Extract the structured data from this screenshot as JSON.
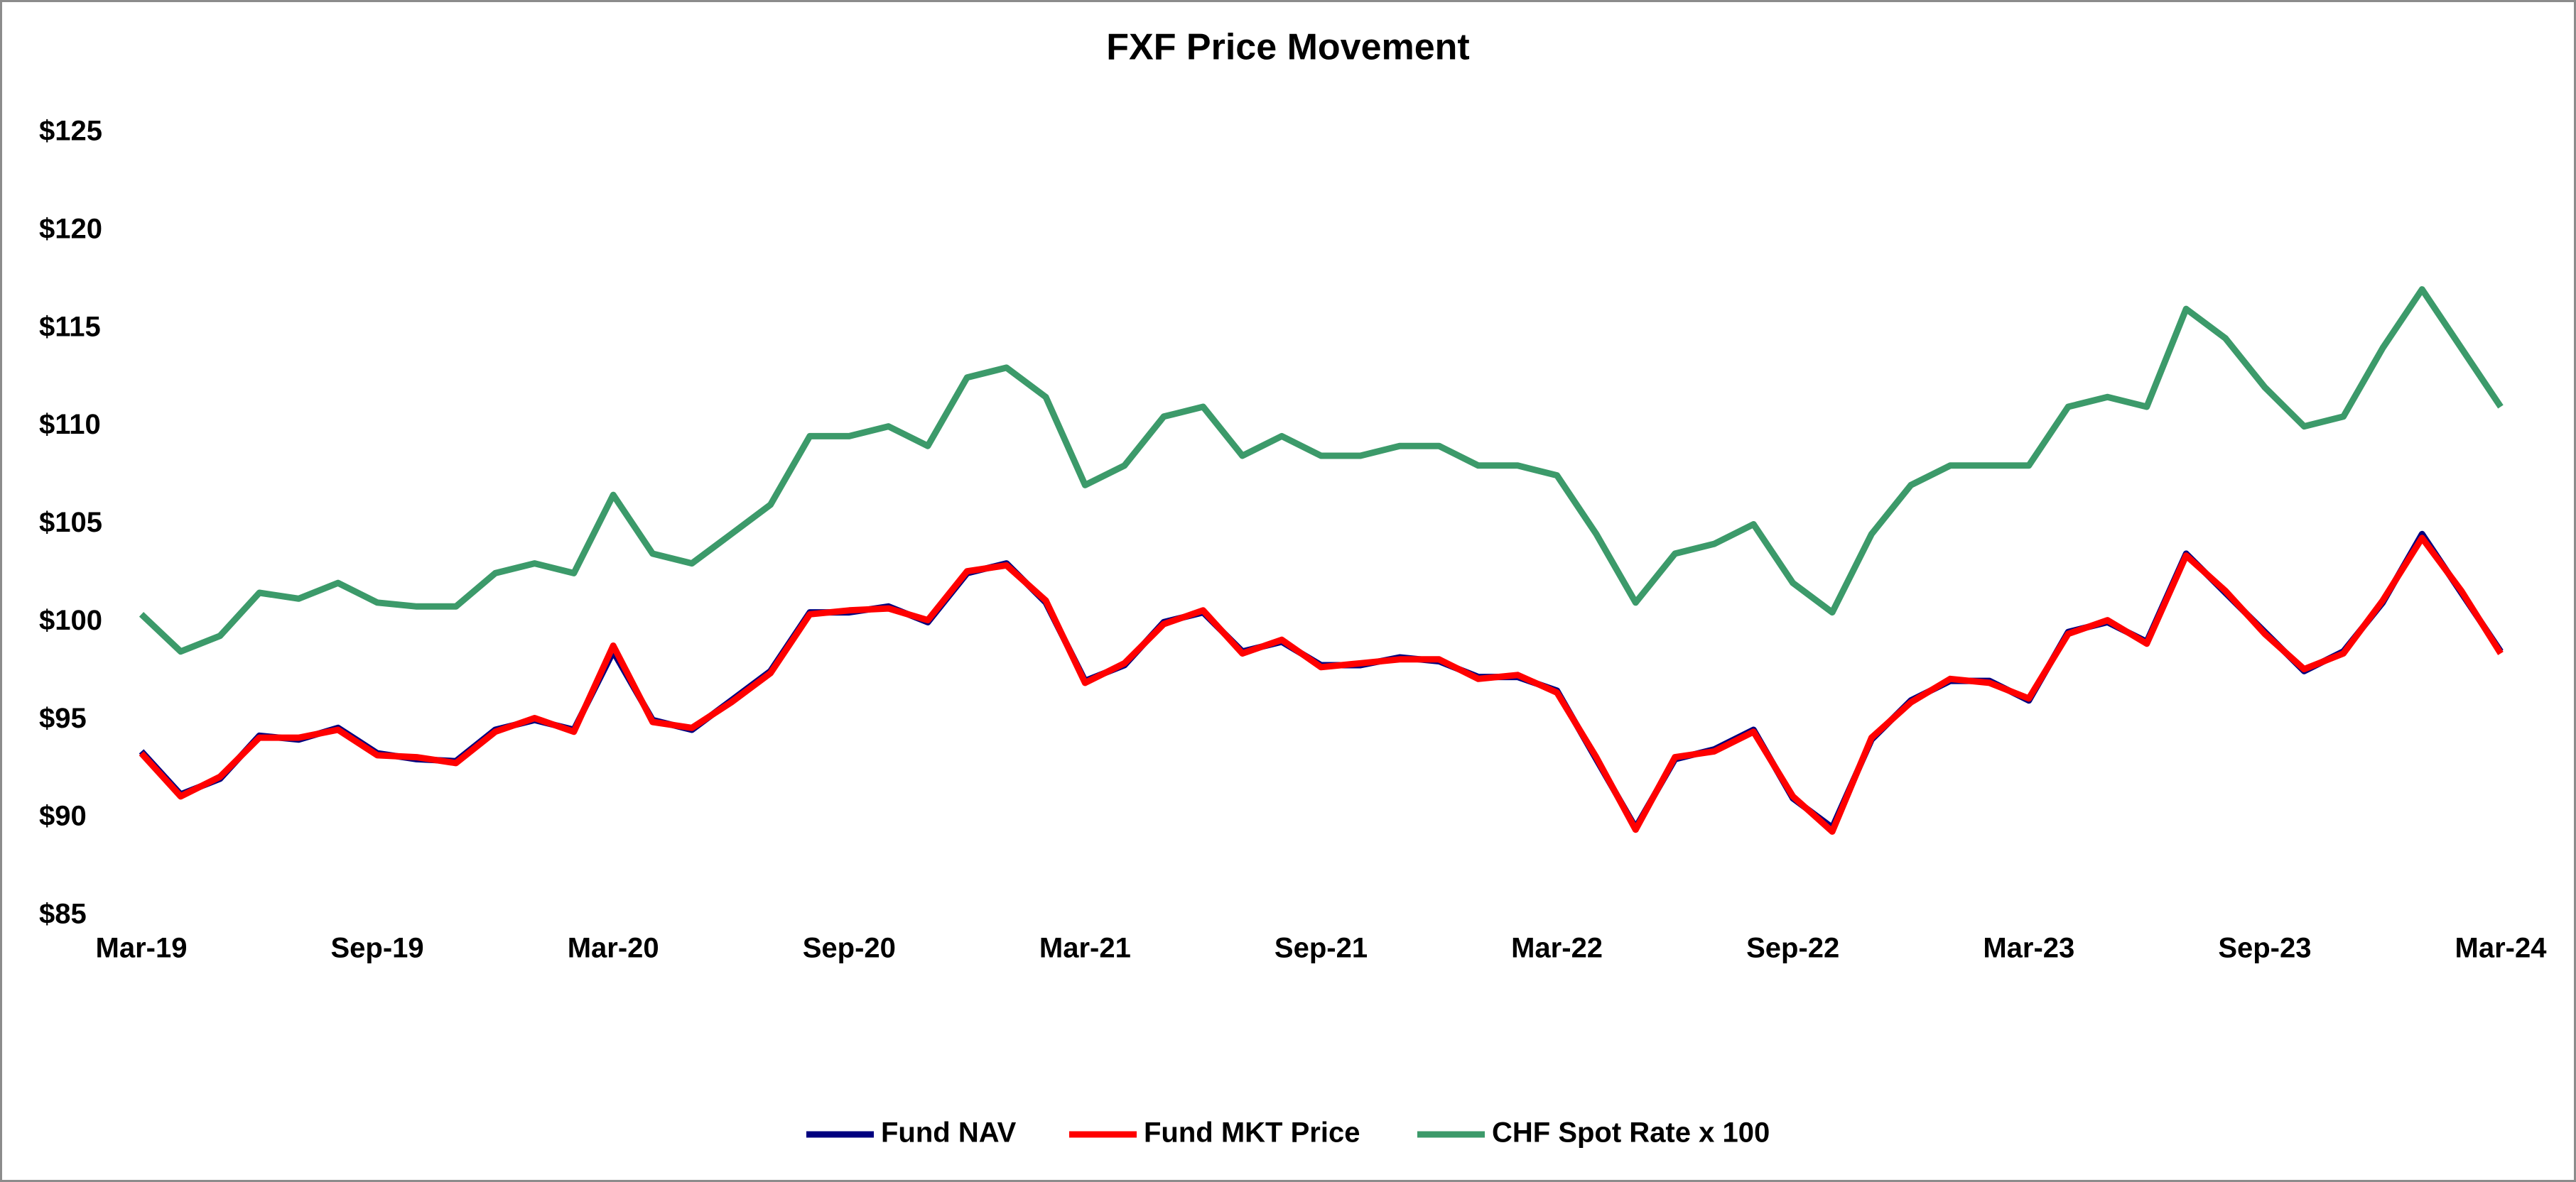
{
  "chart_data": {
    "type": "line",
    "title": "FXF Price Movement",
    "x": [
      "Mar-19",
      null,
      null,
      null,
      null,
      null,
      "Sep-19",
      null,
      null,
      null,
      null,
      null,
      "Mar-20",
      null,
      null,
      null,
      null,
      null,
      "Sep-20",
      null,
      null,
      null,
      null,
      null,
      "Mar-21",
      null,
      null,
      null,
      null,
      null,
      "Sep-21",
      null,
      null,
      null,
      null,
      null,
      "Mar-22",
      null,
      null,
      null,
      null,
      null,
      "Sep-22",
      null,
      null,
      null,
      null,
      null,
      "Mar-23",
      null,
      null,
      null,
      null,
      null,
      "Sep-23",
      null,
      null,
      null,
      null,
      null,
      "Mar-24"
    ],
    "series": [
      {
        "name": "Fund NAV",
        "color": "#00007f",
        "values": [
          93.4,
          91.2,
          92.0,
          94.2,
          94.0,
          94.6,
          93.3,
          93.0,
          92.9,
          94.5,
          95.0,
          94.5,
          98.5,
          95.0,
          94.5,
          96.0,
          97.5,
          100.5,
          100.5,
          100.8,
          100.0,
          102.5,
          103.0,
          101.0,
          97.0,
          97.8,
          100.0,
          100.5,
          98.5,
          99.0,
          97.8,
          97.8,
          98.2,
          98.0,
          97.2,
          97.2,
          96.5,
          93.0,
          89.5,
          93.0,
          93.5,
          94.5,
          91.0,
          89.5,
          94.0,
          96.0,
          97.0,
          97.0,
          96.0,
          99.5,
          100.0,
          99.0,
          103.5,
          101.5,
          99.5,
          97.5,
          98.5,
          101.0,
          104.5,
          101.5,
          98.5
        ]
      },
      {
        "name": "Fund MKT Price",
        "color": "#ff0000",
        "values": [
          93.3,
          91.1,
          92.1,
          94.1,
          94.1,
          94.5,
          93.2,
          93.1,
          92.8,
          94.4,
          95.1,
          94.4,
          98.8,
          94.9,
          94.6,
          95.9,
          97.4,
          100.4,
          100.6,
          100.7,
          100.1,
          102.6,
          102.9,
          101.1,
          96.9,
          97.9,
          99.9,
          100.6,
          98.4,
          99.1,
          97.7,
          97.9,
          98.1,
          98.1,
          97.1,
          97.3,
          96.4,
          93.1,
          89.4,
          93.1,
          93.4,
          94.4,
          91.1,
          89.3,
          94.1,
          95.9,
          97.1,
          96.9,
          96.1,
          99.4,
          100.1,
          98.9,
          103.4,
          101.6,
          99.4,
          97.6,
          98.4,
          101.1,
          104.3,
          101.6,
          98.4
        ]
      },
      {
        "name": "CHF Spot Rate x 100",
        "color": "#3c9a6a",
        "values": [
          100.4,
          98.5,
          99.3,
          101.5,
          101.2,
          102.0,
          101.0,
          100.8,
          100.8,
          102.5,
          103.0,
          102.5,
          106.5,
          103.5,
          103.0,
          104.5,
          106.0,
          109.5,
          109.5,
          110.0,
          109.0,
          112.5,
          113.0,
          111.5,
          107.0,
          108.0,
          110.5,
          111.0,
          108.5,
          109.5,
          108.5,
          108.5,
          109.0,
          109.0,
          108.0,
          108.0,
          107.5,
          104.5,
          101.0,
          103.5,
          104.0,
          105.0,
          102.0,
          100.5,
          104.5,
          107.0,
          108.0,
          108.0,
          108.0,
          111.0,
          111.5,
          111.0,
          116.0,
          114.5,
          112.0,
          110.0,
          110.5,
          114.0,
          117.0,
          114.0,
          111.0
        ]
      }
    ],
    "ylim": [
      85,
      125
    ],
    "yticks": [
      {
        "value": 85,
        "label": "$85"
      },
      {
        "value": 90,
        "label": "$90"
      },
      {
        "value": 95,
        "label": "$95"
      },
      {
        "value": 100,
        "label": "$100"
      },
      {
        "value": 105,
        "label": "$105"
      },
      {
        "value": 110,
        "label": "$110"
      },
      {
        "value": 115,
        "label": "$115"
      },
      {
        "value": 120,
        "label": "$120"
      },
      {
        "value": 125,
        "label": "$125"
      }
    ],
    "grid": false,
    "legend": "bottom"
  }
}
